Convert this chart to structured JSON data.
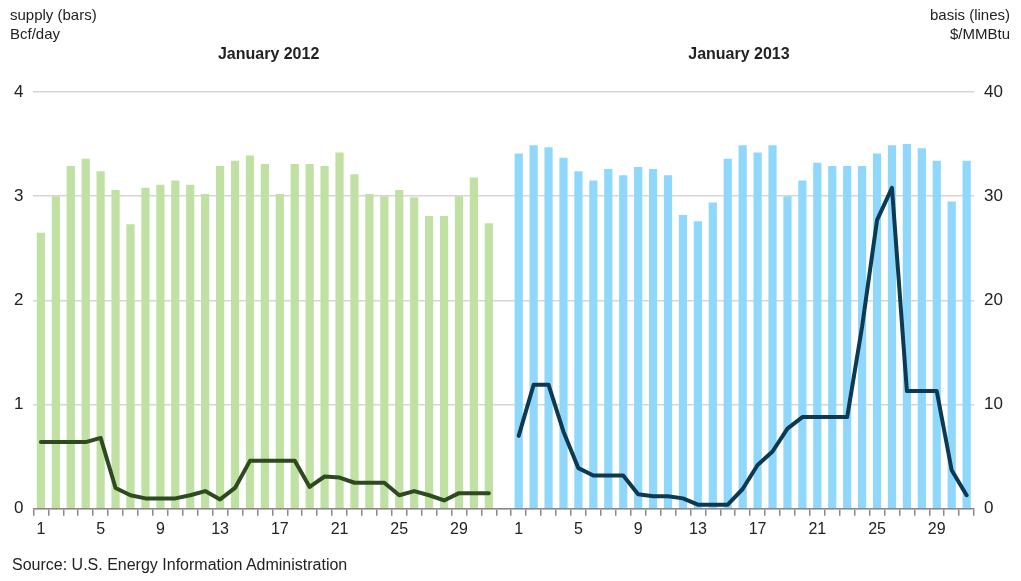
{
  "chart_data": {
    "type": "bar",
    "ylabel": "supply (bars)\nBcf/day",
    "y2label": "basis (lines)\n$/MMBtu",
    "annotations": [
      "January 2012",
      "January 2013",
      "Source: U.S. Energy Information Administration"
    ],
    "categories": [
      "1",
      null,
      null,
      null,
      "5",
      null,
      null,
      null,
      "9",
      null,
      null,
      null,
      "13",
      null,
      null,
      null,
      "17",
      null,
      null,
      null,
      "21",
      null,
      null,
      null,
      "25",
      null,
      null,
      null,
      "29",
      null,
      null,
      null,
      "1",
      null,
      null,
      null,
      "5",
      null,
      null,
      null,
      "9",
      null,
      null,
      null,
      "13",
      null,
      null,
      null,
      "17",
      null,
      null,
      null,
      "21",
      null,
      null,
      null,
      "25",
      null,
      null,
      null,
      "29",
      null,
      null
    ],
    "series": [
      {
        "color": "#c0e0a4",
        "values": [
          2.65,
          3.0,
          3.29,
          3.36,
          3.24,
          3.06,
          2.73,
          3.08,
          3.11,
          3.15,
          3.11,
          3.02,
          3.29,
          3.34,
          3.39,
          3.31,
          3.02,
          3.31,
          3.31,
          3.29,
          3.42,
          3.21,
          3.02,
          3.0,
          3.06,
          2.99,
          2.81,
          2.81,
          3.0,
          3.18,
          2.74,
          null,
          null,
          null,
          null,
          null,
          null,
          null,
          null,
          null,
          null,
          null,
          null,
          null,
          null,
          null,
          null,
          null,
          null,
          null,
          null,
          null,
          null,
          null,
          null,
          null,
          null,
          null,
          null,
          null,
          null,
          null,
          null
        ]
      },
      {
        "color": "#8fd8fc",
        "values": [
          null,
          null,
          null,
          null,
          null,
          null,
          null,
          null,
          null,
          null,
          null,
          null,
          null,
          null,
          null,
          null,
          null,
          null,
          null,
          null,
          null,
          null,
          null,
          null,
          null,
          null,
          null,
          null,
          null,
          null,
          null,
          null,
          3.41,
          3.49,
          3.47,
          3.37,
          3.24,
          3.15,
          3.26,
          3.2,
          3.28,
          3.26,
          3.2,
          2.82,
          2.76,
          2.94,
          3.36,
          3.49,
          3.42,
          3.49,
          3.0,
          3.15,
          3.32,
          3.29,
          3.29,
          3.29,
          3.41,
          3.49,
          3.5,
          3.46,
          3.34,
          2.95,
          3.34
        ]
      },
      {
        "type": "line",
        "axis": "y2",
        "color": "#2e4a1e",
        "values": [
          6.4,
          6.4,
          6.4,
          6.4,
          6.8,
          2.0,
          1.3,
          1.0,
          1.0,
          1.0,
          1.3,
          1.7,
          0.9,
          2.0,
          4.6,
          4.6,
          4.6,
          4.6,
          2.1,
          3.1,
          3.0,
          2.5,
          2.5,
          2.5,
          1.3,
          1.7,
          1.3,
          0.8,
          1.5,
          1.5,
          1.5,
          null,
          null,
          null,
          null,
          null,
          null,
          null,
          null,
          null,
          null,
          null,
          null,
          null,
          null,
          null,
          null,
          null,
          null,
          null,
          null,
          null,
          null,
          null,
          null,
          null,
          null,
          null,
          null,
          null,
          null,
          null,
          null
        ]
      },
      {
        "type": "line",
        "axis": "y2",
        "color": "#0b3a52",
        "values": [
          null,
          null,
          null,
          null,
          null,
          null,
          null,
          null,
          null,
          null,
          null,
          null,
          null,
          null,
          null,
          null,
          null,
          null,
          null,
          null,
          null,
          null,
          null,
          null,
          null,
          null,
          null,
          null,
          null,
          null,
          null,
          null,
          7.0,
          11.9,
          11.9,
          7.4,
          3.9,
          3.2,
          3.2,
          3.2,
          1.4,
          1.2,
          1.2,
          1.0,
          0.4,
          0.4,
          0.4,
          1.9,
          4.2,
          5.5,
          7.7,
          8.8,
          8.8,
          8.8,
          8.8,
          17.5,
          27.7,
          30.8,
          11.3,
          11.3,
          11.3,
          3.7,
          1.3
        ]
      }
    ],
    "ylim": [
      0,
      4
    ],
    "yticks": [
      0,
      1,
      2,
      3,
      4
    ],
    "y2lim": [
      0,
      40
    ],
    "y2ticks": [
      0,
      10,
      20,
      30,
      40
    ],
    "grid": "y",
    "legend": false,
    "marker": "none",
    "line_style": "solid"
  }
}
